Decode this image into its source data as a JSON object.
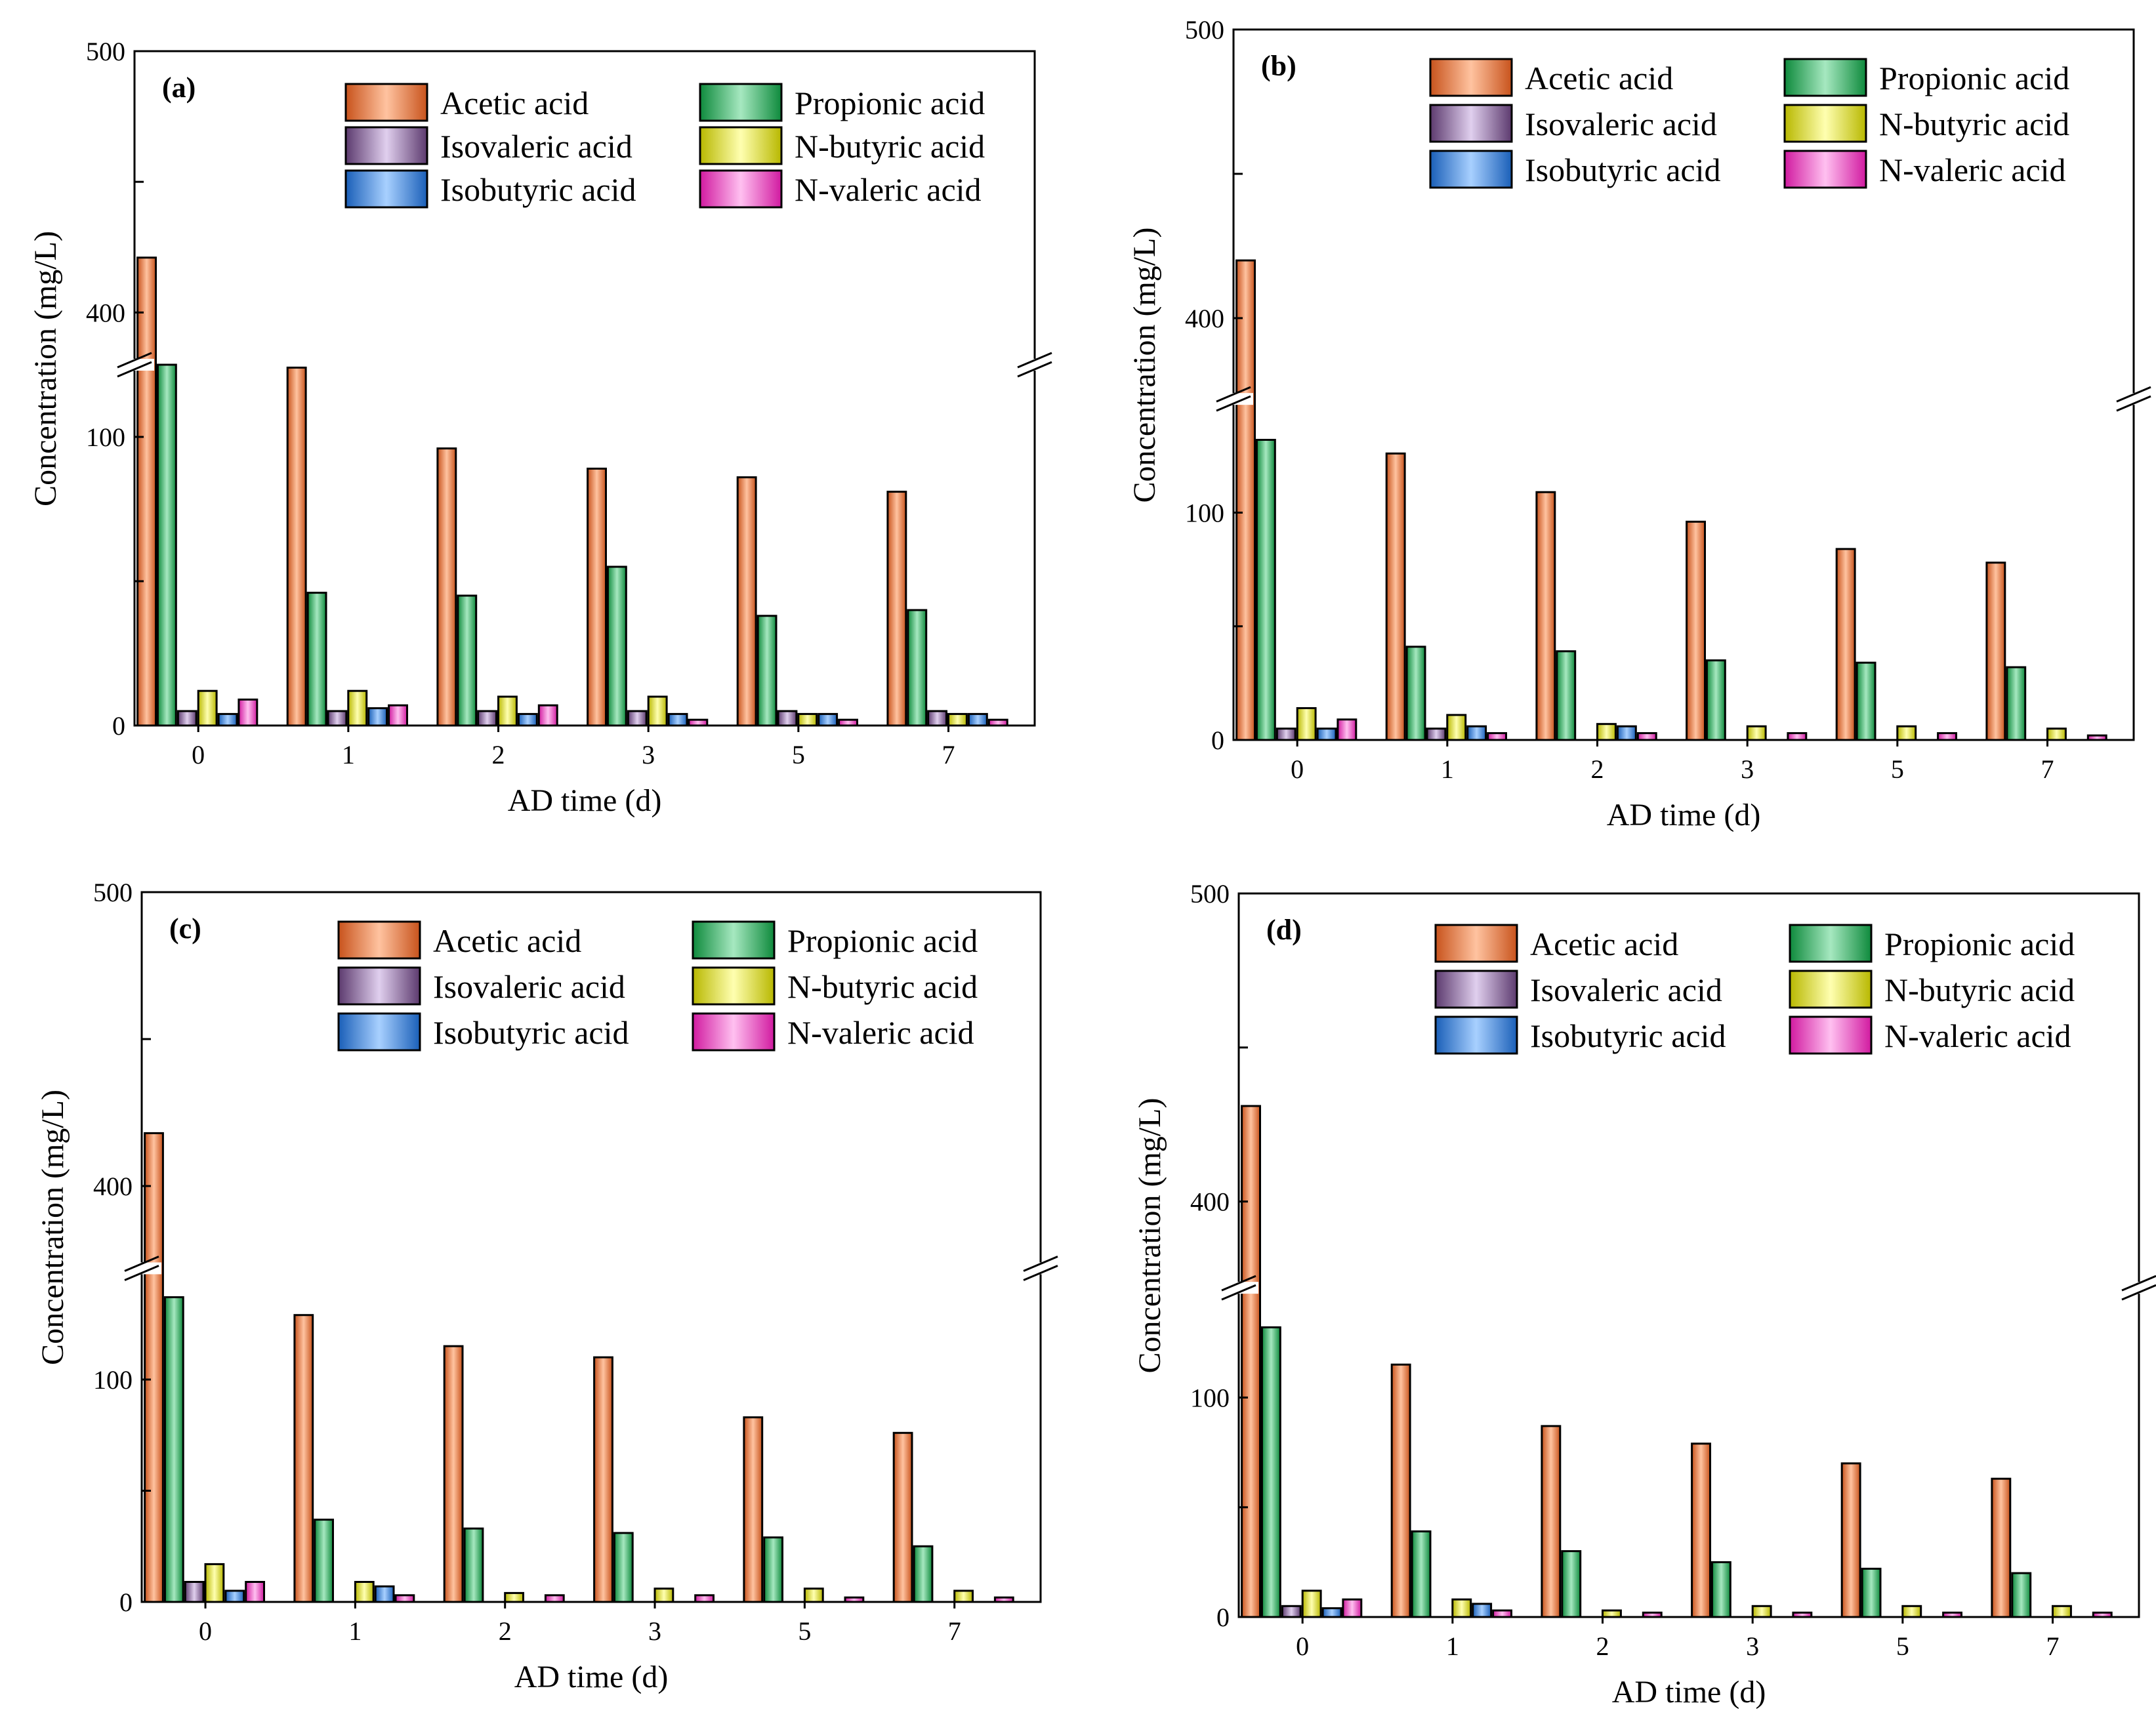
{
  "figure": {
    "colors": {
      "Acetic acid": [
        "#c8531c",
        "#ffc3a0"
      ],
      "Propionic acid": [
        "#0e8a3c",
        "#a6e8c0"
      ],
      "Isovaleric acid": [
        "#5c3a6e",
        "#e0cfee"
      ],
      "N-butyric acid": [
        "#b8b800",
        "#ffffb0"
      ],
      "Isobutyric acid": [
        "#1a5fb8",
        "#a8d0ff"
      ],
      "N-valeric acid": [
        "#d11aa0",
        "#ffc0f0"
      ]
    }
  },
  "chart_data": [
    {
      "type": "bar",
      "panel_label": "(a)",
      "categories": [
        "0",
        "1",
        "2",
        "3",
        "5",
        "7"
      ],
      "xlabel": "AD time (d)",
      "ylabel": "Concentration (mg/L)",
      "ylim": [
        0,
        500
      ],
      "axis_break": [
        125,
        380
      ],
      "yticks": [
        "0",
        "100",
        "400",
        "500"
      ],
      "legend_order": [
        "Acetic acid",
        "Propionic acid",
        "Isovaleric acid",
        "N-butyric acid",
        "Isobutyric acid",
        "N-valeric acid"
      ],
      "series": [
        {
          "name": "Acetic acid",
          "values": [
            421,
            124,
            96,
            89,
            86,
            81
          ]
        },
        {
          "name": "Propionic acid",
          "values": [
            126,
            46,
            45,
            55,
            38,
            40
          ]
        },
        {
          "name": "Isovaleric acid",
          "values": [
            5,
            5,
            5,
            5,
            5,
            5
          ]
        },
        {
          "name": "N-butyric acid",
          "values": [
            12,
            12,
            10,
            10,
            4,
            4
          ]
        },
        {
          "name": "Isobutyric acid",
          "values": [
            4,
            6,
            4,
            4,
            4,
            4
          ]
        },
        {
          "name": "N-valeric acid",
          "values": [
            9,
            7,
            7,
            2,
            2,
            2
          ]
        }
      ]
    },
    {
      "type": "bar",
      "panel_label": "(b)",
      "categories": [
        "0",
        "1",
        "2",
        "3",
        "5",
        "7"
      ],
      "xlabel": "AD time (d)",
      "ylabel": "Concentration (mg/L)",
      "ylim": [
        0,
        500
      ],
      "axis_break": [
        150,
        372
      ],
      "yticks": [
        "0",
        "100",
        "400",
        "500"
      ],
      "legend_order": [
        "Acetic acid",
        "Propionic acid",
        "Isovaleric acid",
        "N-butyric acid",
        "Isobutyric acid",
        "N-valeric acid"
      ],
      "series": [
        {
          "name": "Acetic acid",
          "values": [
            420,
            126,
            109,
            96,
            84,
            78
          ]
        },
        {
          "name": "Propionic acid",
          "values": [
            132,
            41,
            39,
            35,
            34,
            32
          ]
        },
        {
          "name": "Isovaleric acid",
          "values": [
            5,
            5,
            0,
            0,
            0,
            0
          ]
        },
        {
          "name": "N-butyric acid",
          "values": [
            14,
            11,
            7,
            6,
            6,
            5
          ]
        },
        {
          "name": "Isobutyric acid",
          "values": [
            5,
            6,
            6,
            0,
            0,
            0
          ]
        },
        {
          "name": "N-valeric acid",
          "values": [
            9,
            3,
            3,
            3,
            3,
            2
          ]
        }
      ]
    },
    {
      "type": "bar",
      "panel_label": "(c)",
      "categories": [
        "0",
        "1",
        "2",
        "3",
        "5",
        "7"
      ],
      "xlabel": "AD time (d)",
      "ylabel": "Concentration (mg/L)",
      "ylim": [
        0,
        500
      ],
      "axis_break": [
        150,
        372
      ],
      "yticks": [
        "0",
        "100",
        "400",
        "500"
      ],
      "legend_order": [
        "Acetic acid",
        "Propionic acid",
        "Isovaleric acid",
        "N-butyric acid",
        "Isobutyric acid",
        "N-valeric acid"
      ],
      "series": [
        {
          "name": "Acetic acid",
          "values": [
            418,
            129,
            115,
            110,
            83,
            76
          ]
        },
        {
          "name": "Propionic acid",
          "values": [
            137,
            37,
            33,
            31,
            29,
            25
          ]
        },
        {
          "name": "Isovaleric acid",
          "values": [
            9,
            0,
            0,
            0,
            0,
            0
          ]
        },
        {
          "name": "N-butyric acid",
          "values": [
            17,
            9,
            4,
            6,
            6,
            5
          ]
        },
        {
          "name": "Isobutyric acid",
          "values": [
            5,
            7,
            0,
            0,
            0,
            0
          ]
        },
        {
          "name": "N-valeric acid",
          "values": [
            9,
            3,
            3,
            3,
            2,
            2
          ]
        }
      ]
    },
    {
      "type": "bar",
      "panel_label": "(d)",
      "categories": [
        "0",
        "1",
        "2",
        "3",
        "5",
        "7"
      ],
      "xlabel": "AD time (d)",
      "ylabel": "Concentration (mg/L)",
      "ylim": [
        0,
        500
      ],
      "axis_break": [
        150,
        372
      ],
      "yticks": [
        "0",
        "100",
        "400",
        "500"
      ],
      "legend_order": [
        "Acetic acid",
        "Propionic acid",
        "Isovaleric acid",
        "N-butyric acid",
        "Isobutyric acid",
        "N-valeric acid"
      ],
      "series": [
        {
          "name": "Acetic acid",
          "values": [
            431,
            115,
            87,
            79,
            70,
            63
          ]
        },
        {
          "name": "Propionic acid",
          "values": [
            132,
            39,
            30,
            25,
            22,
            20
          ]
        },
        {
          "name": "Isovaleric acid",
          "values": [
            5,
            0,
            0,
            0,
            0,
            0
          ]
        },
        {
          "name": "N-butyric acid",
          "values": [
            12,
            8,
            3,
            5,
            5,
            5
          ]
        },
        {
          "name": "Isobutyric acid",
          "values": [
            4,
            6,
            0,
            0,
            0,
            0
          ]
        },
        {
          "name": "N-valeric acid",
          "values": [
            8,
            3,
            2,
            2,
            2,
            2
          ]
        }
      ]
    }
  ]
}
